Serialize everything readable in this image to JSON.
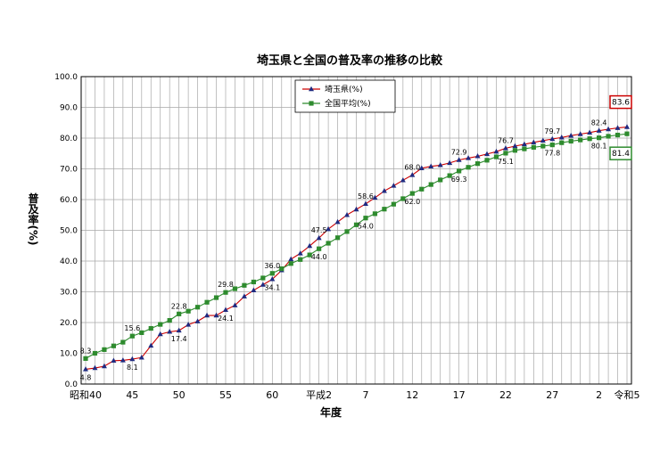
{
  "chart_data": {
    "type": "line",
    "title": "埼玉県と全国の普及率の推移の比較",
    "xlabel": "年度",
    "ylabel": "普及率(%)",
    "ylim": [
      0,
      100
    ],
    "yticks": [
      "0.0",
      "10.0",
      "20.0",
      "30.0",
      "40.0",
      "50.0",
      "60.0",
      "70.0",
      "80.0",
      "90.0",
      "100.0"
    ],
    "grid": true,
    "legend_position": "top-center",
    "x": [
      "昭和40",
      "昭和41",
      "昭和42",
      "昭和43",
      "昭和44",
      "昭和45",
      "昭和46",
      "昭和47",
      "昭和48",
      "昭和49",
      "昭和50",
      "昭和51",
      "昭和52",
      "昭和53",
      "昭和54",
      "昭和55",
      "昭和56",
      "昭和57",
      "昭和58",
      "昭和59",
      "昭和60",
      "昭和61",
      "昭和62",
      "昭和63",
      "平成元",
      "平成2",
      "平成3",
      "平成4",
      "平成5",
      "平成6",
      "平成7",
      "平成8",
      "平成9",
      "平成10",
      "平成11",
      "平成12",
      "平成13",
      "平成14",
      "平成15",
      "平成16",
      "平成17",
      "平成18",
      "平成19",
      "平成20",
      "平成21",
      "平成22",
      "平成23",
      "平成24",
      "平成25",
      "平成26",
      "平成27",
      "平成28",
      "平成29",
      "平成30",
      "令和元",
      "令和2",
      "令和3",
      "令和4",
      "令和5"
    ],
    "xtick_labels": [
      {
        "index": 0,
        "label": "昭和40"
      },
      {
        "index": 5,
        "label": "45"
      },
      {
        "index": 10,
        "label": "50"
      },
      {
        "index": 15,
        "label": "55"
      },
      {
        "index": 20,
        "label": "60"
      },
      {
        "index": 25,
        "label": "平成2"
      },
      {
        "index": 30,
        "label": "7"
      },
      {
        "index": 35,
        "label": "12"
      },
      {
        "index": 40,
        "label": "17"
      },
      {
        "index": 45,
        "label": "22"
      },
      {
        "index": 50,
        "label": "27"
      },
      {
        "index": 55,
        "label": "2"
      },
      {
        "index": 58,
        "label": "令和5"
      }
    ],
    "series": [
      {
        "name": "埼玉県(%)",
        "color": "#cc0000",
        "marker_color": "#1f2a80",
        "marker": "triangle",
        "values": [
          4.8,
          5.2,
          5.8,
          7.6,
          7.7,
          8.1,
          8.6,
          12.5,
          16.2,
          17.0,
          17.4,
          19.3,
          20.4,
          22.3,
          22.3,
          24.1,
          25.6,
          28.5,
          30.5,
          32.3,
          34.1,
          37.0,
          40.6,
          42.5,
          44.9,
          47.5,
          50.4,
          52.7,
          55.0,
          56.8,
          58.6,
          60.6,
          62.8,
          64.5,
          66.3,
          68.0,
          70.2,
          70.8,
          71.2,
          71.9,
          72.9,
          73.5,
          74.1,
          74.8,
          75.6,
          76.7,
          77.4,
          78.0,
          78.6,
          79.2,
          79.7,
          80.2,
          80.8,
          81.3,
          81.8,
          82.4,
          82.9,
          83.3,
          83.6
        ]
      },
      {
        "name": "全国平均(%)",
        "color": "#2e8b2e",
        "marker_color": "#2e8b2e",
        "marker": "square",
        "values": [
          8.3,
          10.0,
          11.2,
          12.4,
          13.6,
          15.6,
          16.7,
          18.1,
          19.4,
          20.7,
          22.8,
          23.7,
          25.0,
          26.6,
          28.1,
          29.8,
          31.0,
          32.1,
          33.2,
          34.5,
          36.0,
          37.5,
          39.2,
          40.5,
          42.0,
          44.0,
          45.8,
          47.6,
          49.6,
          51.8,
          54.0,
          55.4,
          56.9,
          58.5,
          60.3,
          62.0,
          63.4,
          64.9,
          66.4,
          67.8,
          69.3,
          70.5,
          71.7,
          72.8,
          73.9,
          75.1,
          76.0,
          76.5,
          77.0,
          77.4,
          77.8,
          78.5,
          79.0,
          79.4,
          79.8,
          80.1,
          80.6,
          81.0,
          81.4
        ]
      }
    ],
    "data_labels": [
      {
        "series": 0,
        "index": 0,
        "text": "4.8",
        "pos": "below"
      },
      {
        "series": 0,
        "index": 5,
        "text": "8.1",
        "pos": "below"
      },
      {
        "series": 0,
        "index": 10,
        "text": "17.4",
        "pos": "below"
      },
      {
        "series": 0,
        "index": 15,
        "text": "24.1",
        "pos": "below"
      },
      {
        "series": 0,
        "index": 20,
        "text": "34.1",
        "pos": "below"
      },
      {
        "series": 0,
        "index": 25,
        "text": "47.5",
        "pos": "above"
      },
      {
        "series": 0,
        "index": 30,
        "text": "58.6",
        "pos": "above"
      },
      {
        "series": 0,
        "index": 35,
        "text": "68.0",
        "pos": "above"
      },
      {
        "series": 0,
        "index": 40,
        "text": "72.9",
        "pos": "above"
      },
      {
        "series": 0,
        "index": 45,
        "text": "76.7",
        "pos": "above"
      },
      {
        "series": 0,
        "index": 50,
        "text": "79.7",
        "pos": "above"
      },
      {
        "series": 0,
        "index": 55,
        "text": "82.4",
        "pos": "above"
      },
      {
        "series": 1,
        "index": 0,
        "text": "8.3",
        "pos": "above"
      },
      {
        "series": 1,
        "index": 5,
        "text": "15.6",
        "pos": "above"
      },
      {
        "series": 1,
        "index": 10,
        "text": "22.8",
        "pos": "above"
      },
      {
        "series": 1,
        "index": 15,
        "text": "29.8",
        "pos": "above"
      },
      {
        "series": 1,
        "index": 20,
        "text": "36.0",
        "pos": "above"
      },
      {
        "series": 1,
        "index": 25,
        "text": "44.0",
        "pos": "below"
      },
      {
        "series": 1,
        "index": 30,
        "text": "54.0",
        "pos": "below"
      },
      {
        "series": 1,
        "index": 35,
        "text": "62.0",
        "pos": "below"
      },
      {
        "series": 1,
        "index": 40,
        "text": "69.3",
        "pos": "below"
      },
      {
        "series": 1,
        "index": 45,
        "text": "75.1",
        "pos": "below"
      },
      {
        "series": 1,
        "index": 50,
        "text": "77.8",
        "pos": "below"
      },
      {
        "series": 1,
        "index": 55,
        "text": "80.1",
        "pos": "below"
      }
    ],
    "end_labels": [
      {
        "series": 0,
        "text": "83.6",
        "box_color": "#cc0000"
      },
      {
        "series": 1,
        "text": "81.4",
        "box_color": "#2e8b2e"
      }
    ]
  }
}
